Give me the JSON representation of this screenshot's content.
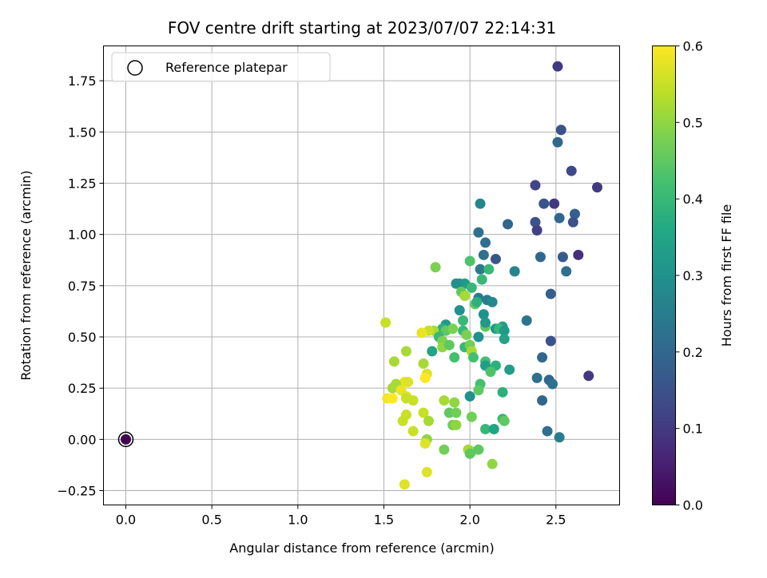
{
  "chart_data": {
    "type": "scatter",
    "title": "FOV centre drift starting at 2023/07/07 22:14:31",
    "xlabel": "Angular distance from reference (arcmin)",
    "ylabel": "Rotation from reference (arcmin)",
    "xlim": [
      -0.13,
      2.87
    ],
    "ylim": [
      -0.32,
      1.92
    ],
    "xticks": [
      0.0,
      0.5,
      1.0,
      1.5,
      2.0,
      2.5
    ],
    "xtick_labels": [
      "0.0",
      "0.5",
      "1.0",
      "1.5",
      "2.0",
      "2.5"
    ],
    "yticks": [
      -0.25,
      0.0,
      0.25,
      0.5,
      0.75,
      1.0,
      1.25,
      1.5,
      1.75
    ],
    "ytick_labels": [
      "−0.25",
      "0.00",
      "0.25",
      "0.50",
      "0.75",
      "1.00",
      "1.25",
      "1.50",
      "1.75"
    ],
    "grid": true,
    "legend": {
      "position": "top-left",
      "entries": [
        "Reference platepar"
      ]
    },
    "reference_point": {
      "x": 0.0,
      "y": 0.0,
      "hours": 0.0
    },
    "colorbar": {
      "label": "Hours from first FF file",
      "range": [
        0.0,
        0.6
      ],
      "ticks": [
        0.0,
        0.1,
        0.2,
        0.3,
        0.4,
        0.5,
        0.6
      ],
      "tick_labels": [
        "0.0",
        "0.1",
        "0.2",
        "0.3",
        "0.4",
        "0.5",
        "0.6"
      ],
      "colormap": "viridis"
    },
    "points": [
      [
        2.51,
        1.82,
        0.1
      ],
      [
        2.53,
        1.51,
        0.15
      ],
      [
        2.51,
        1.45,
        0.2
      ],
      [
        2.59,
        1.31,
        0.13
      ],
      [
        2.74,
        1.23,
        0.1
      ],
      [
        2.38,
        1.24,
        0.12
      ],
      [
        2.49,
        1.15,
        0.1
      ],
      [
        2.43,
        1.15,
        0.16
      ],
      [
        2.61,
        1.1,
        0.18
      ],
      [
        2.52,
        1.08,
        0.2
      ],
      [
        2.6,
        1.06,
        0.15
      ],
      [
        2.38,
        1.06,
        0.15
      ],
      [
        2.39,
        1.02,
        0.11
      ],
      [
        2.22,
        1.05,
        0.2
      ],
      [
        2.06,
        1.15,
        0.27
      ],
      [
        2.05,
        1.01,
        0.22
      ],
      [
        2.09,
        0.96,
        0.22
      ],
      [
        2.63,
        0.9,
        0.08
      ],
      [
        2.54,
        0.89,
        0.17
      ],
      [
        2.41,
        0.89,
        0.2
      ],
      [
        2.15,
        0.88,
        0.16
      ],
      [
        2.08,
        0.9,
        0.22
      ],
      [
        2.26,
        0.82,
        0.27
      ],
      [
        2.56,
        0.82,
        0.22
      ],
      [
        2.06,
        0.83,
        0.25
      ],
      [
        2.11,
        0.83,
        0.4
      ],
      [
        2.0,
        0.87,
        0.43
      ],
      [
        2.07,
        0.78,
        0.4
      ],
      [
        1.8,
        0.84,
        0.48
      ],
      [
        1.97,
        0.76,
        0.33
      ],
      [
        1.94,
        0.76,
        0.32
      ],
      [
        1.92,
        0.76,
        0.3
      ],
      [
        2.01,
        0.74,
        0.4
      ],
      [
        1.95,
        0.72,
        0.45
      ],
      [
        1.97,
        0.7,
        0.52
      ],
      [
        2.05,
        0.69,
        0.25
      ],
      [
        2.1,
        0.68,
        0.25
      ],
      [
        2.13,
        0.67,
        0.28
      ],
      [
        2.03,
        0.66,
        0.45
      ],
      [
        2.47,
        0.71,
        0.18
      ],
      [
        2.04,
        0.67,
        0.38
      ],
      [
        1.94,
        0.63,
        0.3
      ],
      [
        2.08,
        0.61,
        0.3
      ],
      [
        1.96,
        0.58,
        0.4
      ],
      [
        2.33,
        0.58,
        0.23
      ],
      [
        1.86,
        0.56,
        0.32
      ],
      [
        1.84,
        0.54,
        0.38
      ],
      [
        1.86,
        0.53,
        0.45
      ],
      [
        1.9,
        0.54,
        0.48
      ],
      [
        1.96,
        0.53,
        0.4
      ],
      [
        1.98,
        0.51,
        0.48
      ],
      [
        2.05,
        0.5,
        0.3
      ],
      [
        2.09,
        0.55,
        0.45
      ],
      [
        2.09,
        0.57,
        0.32
      ],
      [
        2.15,
        0.54,
        0.32
      ],
      [
        2.19,
        0.55,
        0.33
      ],
      [
        2.17,
        0.54,
        0.4
      ],
      [
        2.2,
        0.53,
        0.32
      ],
      [
        2.2,
        0.49,
        0.35
      ],
      [
        1.79,
        0.53,
        0.52
      ],
      [
        1.82,
        0.5,
        0.4
      ],
      [
        1.76,
        0.53,
        0.55
      ],
      [
        1.72,
        0.52,
        0.58
      ],
      [
        1.51,
        0.57,
        0.55
      ],
      [
        1.84,
        0.48,
        0.48
      ],
      [
        2.47,
        0.48,
        0.15
      ],
      [
        1.84,
        0.45,
        0.5
      ],
      [
        1.88,
        0.46,
        0.45
      ],
      [
        1.97,
        0.45,
        0.4
      ],
      [
        2.0,
        0.46,
        0.47
      ],
      [
        2.01,
        0.43,
        0.52
      ],
      [
        1.78,
        0.43,
        0.35
      ],
      [
        1.63,
        0.43,
        0.52
      ],
      [
        1.91,
        0.4,
        0.42
      ],
      [
        2.02,
        0.4,
        0.42
      ],
      [
        2.42,
        0.4,
        0.2
      ],
      [
        1.56,
        0.38,
        0.52
      ],
      [
        1.73,
        0.37,
        0.52
      ],
      [
        2.09,
        0.38,
        0.42
      ],
      [
        2.09,
        0.36,
        0.33
      ],
      [
        2.15,
        0.36,
        0.38
      ],
      [
        2.12,
        0.33,
        0.43
      ],
      [
        2.23,
        0.34,
        0.33
      ],
      [
        2.69,
        0.31,
        0.1
      ],
      [
        2.39,
        0.3,
        0.22
      ],
      [
        2.46,
        0.29,
        0.2
      ],
      [
        2.48,
        0.27,
        0.22
      ],
      [
        1.75,
        0.32,
        0.57
      ],
      [
        1.74,
        0.3,
        0.6
      ],
      [
        1.62,
        0.28,
        0.58
      ],
      [
        1.64,
        0.28,
        0.57
      ],
      [
        1.57,
        0.27,
        0.52
      ],
      [
        1.55,
        0.25,
        0.52
      ],
      [
        1.6,
        0.24,
        0.58
      ],
      [
        2.06,
        0.27,
        0.42
      ],
      [
        2.05,
        0.24,
        0.45
      ],
      [
        2.19,
        0.23,
        0.38
      ],
      [
        2.0,
        0.21,
        0.3
      ],
      [
        1.63,
        0.21,
        0.57
      ],
      [
        1.52,
        0.2,
        0.59
      ],
      [
        1.55,
        0.2,
        0.6
      ],
      [
        1.63,
        0.2,
        0.55
      ],
      [
        1.67,
        0.19,
        0.55
      ],
      [
        1.85,
        0.19,
        0.52
      ],
      [
        1.91,
        0.18,
        0.5
      ],
      [
        2.42,
        0.19,
        0.2
      ],
      [
        1.73,
        0.13,
        0.55
      ],
      [
        1.88,
        0.13,
        0.45
      ],
      [
        1.92,
        0.13,
        0.47
      ],
      [
        1.63,
        0.12,
        0.55
      ],
      [
        2.01,
        0.11,
        0.47
      ],
      [
        2.19,
        0.1,
        0.4
      ],
      [
        2.2,
        0.09,
        0.45
      ],
      [
        1.61,
        0.09,
        0.55
      ],
      [
        1.76,
        0.09,
        0.52
      ],
      [
        1.9,
        0.07,
        0.47
      ],
      [
        1.92,
        0.07,
        0.5
      ],
      [
        2.09,
        0.05,
        0.4
      ],
      [
        2.14,
        0.05,
        0.35
      ],
      [
        2.45,
        0.04,
        0.22
      ],
      [
        1.67,
        0.04,
        0.55
      ],
      [
        1.75,
        0.0,
        0.5
      ],
      [
        2.52,
        0.01,
        0.25
      ],
      [
        1.74,
        -0.02,
        0.57
      ],
      [
        1.85,
        -0.05,
        0.47
      ],
      [
        1.99,
        -0.05,
        0.52
      ],
      [
        2.01,
        -0.06,
        0.5
      ],
      [
        2.0,
        -0.07,
        0.45
      ],
      [
        2.05,
        -0.05,
        0.45
      ],
      [
        2.13,
        -0.12,
        0.5
      ],
      [
        1.75,
        -0.16,
        0.57
      ],
      [
        1.62,
        -0.22,
        0.57
      ],
      [
        0.0,
        0.0,
        0.0
      ]
    ]
  }
}
